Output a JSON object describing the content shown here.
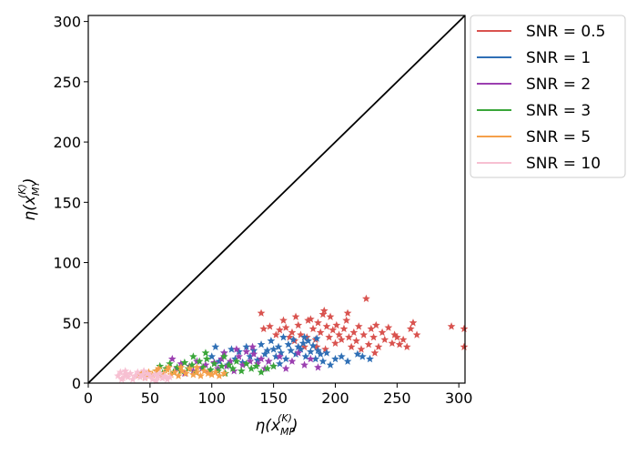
{
  "chart_data": {
    "type": "scatter",
    "title": "",
    "xlabel": {
      "base": "η(x",
      "sup": "(K)",
      "sub": "MP",
      "close": ")"
    },
    "ylabel": {
      "base": "η(x",
      "sup": "(K)",
      "sub": "MY",
      "close": ")"
    },
    "xlim": [
      0,
      305
    ],
    "ylim": [
      0,
      305
    ],
    "xticks": [
      0,
      50,
      100,
      150,
      200,
      250,
      300
    ],
    "yticks": [
      0,
      50,
      100,
      150,
      200,
      250,
      300
    ],
    "marker": "star",
    "legend_position": "outside-top-right",
    "reference_line": {
      "from": [
        0,
        0
      ],
      "to": [
        305,
        305
      ],
      "color": "#000000"
    },
    "series": [
      {
        "name": "SNR = 0.5",
        "color": "#d9534f",
        "points": [
          [
            140,
            58
          ],
          [
            142,
            45
          ],
          [
            147,
            47
          ],
          [
            152,
            40
          ],
          [
            155,
            44
          ],
          [
            158,
            52
          ],
          [
            160,
            46
          ],
          [
            163,
            38
          ],
          [
            165,
            42
          ],
          [
            167,
            35
          ],
          [
            170,
            48
          ],
          [
            172,
            40
          ],
          [
            175,
            30
          ],
          [
            177,
            38
          ],
          [
            180,
            53
          ],
          [
            182,
            45
          ],
          [
            184,
            36
          ],
          [
            186,
            50
          ],
          [
            188,
            42
          ],
          [
            190,
            57
          ],
          [
            191,
            60
          ],
          [
            193,
            47
          ],
          [
            195,
            38
          ],
          [
            196,
            55
          ],
          [
            198,
            44
          ],
          [
            200,
            33
          ],
          [
            201,
            48
          ],
          [
            203,
            40
          ],
          [
            205,
            36
          ],
          [
            207,
            45
          ],
          [
            209,
            52
          ],
          [
            211,
            38
          ],
          [
            213,
            30
          ],
          [
            215,
            42
          ],
          [
            217,
            35
          ],
          [
            219,
            47
          ],
          [
            221,
            28
          ],
          [
            223,
            40
          ],
          [
            225,
            70
          ],
          [
            227,
            32
          ],
          [
            229,
            45
          ],
          [
            231,
            38
          ],
          [
            233,
            48
          ],
          [
            235,
            30
          ],
          [
            238,
            42
          ],
          [
            240,
            36
          ],
          [
            243,
            46
          ],
          [
            246,
            33
          ],
          [
            248,
            40
          ],
          [
            250,
            38
          ],
          [
            252,
            32
          ],
          [
            255,
            36
          ],
          [
            258,
            30
          ],
          [
            261,
            45
          ],
          [
            263,
            50
          ],
          [
            266,
            40
          ],
          [
            294,
            47
          ],
          [
            305,
            45
          ],
          [
            305,
            30
          ],
          [
            185,
            30
          ],
          [
            178,
            52
          ],
          [
            192,
            28
          ],
          [
            168,
            55
          ],
          [
            210,
            58
          ],
          [
            232,
            25
          ]
        ]
      },
      {
        "name": "SNR = 1",
        "color": "#2f6fb5",
        "points": [
          [
            100,
            22
          ],
          [
            103,
            30
          ],
          [
            106,
            18
          ],
          [
            110,
            25
          ],
          [
            113,
            15
          ],
          [
            116,
            28
          ],
          [
            119,
            20
          ],
          [
            122,
            26
          ],
          [
            125,
            17
          ],
          [
            128,
            30
          ],
          [
            131,
            22
          ],
          [
            134,
            27
          ],
          [
            137,
            19
          ],
          [
            140,
            32
          ],
          [
            143,
            24
          ],
          [
            146,
            18
          ],
          [
            148,
            35
          ],
          [
            150,
            28
          ],
          [
            152,
            22
          ],
          [
            154,
            30
          ],
          [
            156,
            25
          ],
          [
            158,
            38
          ],
          [
            160,
            20
          ],
          [
            162,
            32
          ],
          [
            164,
            27
          ],
          [
            166,
            36
          ],
          [
            168,
            24
          ],
          [
            170,
            30
          ],
          [
            172,
            28
          ],
          [
            174,
            33
          ],
          [
            176,
            22
          ],
          [
            178,
            35
          ],
          [
            180,
            26
          ],
          [
            182,
            31
          ],
          [
            184,
            20
          ],
          [
            186,
            27
          ],
          [
            188,
            24
          ],
          [
            190,
            18
          ],
          [
            193,
            25
          ],
          [
            196,
            15
          ],
          [
            200,
            20
          ],
          [
            205,
            22
          ],
          [
            210,
            18
          ],
          [
            218,
            24
          ],
          [
            222,
            22
          ],
          [
            228,
            20
          ],
          [
            145,
            27
          ],
          [
            155,
            16
          ],
          [
            175,
            38
          ],
          [
            185,
            37
          ]
        ]
      },
      {
        "name": "SNR = 2",
        "color": "#9b3fb0",
        "points": [
          [
            68,
            20
          ],
          [
            72,
            12
          ],
          [
            75,
            16
          ],
          [
            78,
            8
          ],
          [
            82,
            14
          ],
          [
            85,
            10
          ],
          [
            88,
            18
          ],
          [
            92,
            12
          ],
          [
            95,
            15
          ],
          [
            98,
            9
          ],
          [
            102,
            17
          ],
          [
            105,
            12
          ],
          [
            108,
            20
          ],
          [
            112,
            14
          ],
          [
            115,
            18
          ],
          [
            118,
            10
          ],
          [
            122,
            22
          ],
          [
            125,
            15
          ],
          [
            128,
            26
          ],
          [
            131,
            18
          ],
          [
            134,
            24
          ],
          [
            137,
            16
          ],
          [
            140,
            20
          ],
          [
            143,
            12
          ],
          [
            146,
            18
          ],
          [
            150,
            14
          ],
          [
            155,
            22
          ],
          [
            160,
            12
          ],
          [
            165,
            18
          ],
          [
            170,
            25
          ],
          [
            175,
            15
          ],
          [
            180,
            20
          ],
          [
            186,
            13
          ],
          [
            120,
            28
          ],
          [
            110,
            25
          ],
          [
            133,
            30
          ]
        ]
      },
      {
        "name": "SNR = 3",
        "color": "#3aa63a",
        "points": [
          [
            55,
            10
          ],
          [
            58,
            14
          ],
          [
            60,
            8
          ],
          [
            63,
            12
          ],
          [
            66,
            16
          ],
          [
            69,
            9
          ],
          [
            72,
            13
          ],
          [
            75,
            10
          ],
          [
            78,
            17
          ],
          [
            81,
            12
          ],
          [
            84,
            15
          ],
          [
            87,
            9
          ],
          [
            90,
            18
          ],
          [
            93,
            13
          ],
          [
            96,
            20
          ],
          [
            99,
            11
          ],
          [
            102,
            16
          ],
          [
            105,
            10
          ],
          [
            108,
            14
          ],
          [
            111,
            8
          ],
          [
            114,
            15
          ],
          [
            117,
            12
          ],
          [
            120,
            18
          ],
          [
            124,
            10
          ],
          [
            128,
            16
          ],
          [
            132,
            12
          ],
          [
            136,
            14
          ],
          [
            140,
            9
          ],
          [
            145,
            12
          ],
          [
            150,
            14
          ],
          [
            85,
            22
          ],
          [
            95,
            25
          ],
          [
            110,
            22
          ]
        ]
      },
      {
        "name": "SNR = 5",
        "color": "#f5a04a",
        "points": [
          [
            40,
            6
          ],
          [
            43,
            8
          ],
          [
            46,
            5
          ],
          [
            49,
            9
          ],
          [
            52,
            7
          ],
          [
            55,
            10
          ],
          [
            58,
            6
          ],
          [
            61,
            8
          ],
          [
            64,
            11
          ],
          [
            67,
            7
          ],
          [
            70,
            9
          ],
          [
            73,
            6
          ],
          [
            76,
            10
          ],
          [
            79,
            8
          ],
          [
            82,
            12
          ],
          [
            85,
            7
          ],
          [
            88,
            9
          ],
          [
            91,
            6
          ],
          [
            94,
            10
          ],
          [
            97,
            8
          ],
          [
            100,
            7
          ],
          [
            103,
            9
          ],
          [
            106,
            6
          ],
          [
            110,
            8
          ],
          [
            57,
            12
          ],
          [
            65,
            13
          ],
          [
            75,
            13
          ],
          [
            88,
            13
          ]
        ]
      },
      {
        "name": "SNR = 10",
        "color": "#f7c0d2",
        "points": [
          [
            24,
            6
          ],
          [
            26,
            9
          ],
          [
            28,
            4
          ],
          [
            30,
            7
          ],
          [
            32,
            5
          ],
          [
            34,
            8
          ],
          [
            36,
            3
          ],
          [
            38,
            6
          ],
          [
            40,
            9
          ],
          [
            42,
            5
          ],
          [
            44,
            7
          ],
          [
            46,
            4
          ],
          [
            48,
            8
          ],
          [
            50,
            6
          ],
          [
            52,
            3
          ],
          [
            54,
            7
          ],
          [
            56,
            5
          ],
          [
            58,
            8
          ],
          [
            60,
            4
          ],
          [
            62,
            6
          ],
          [
            64,
            3
          ],
          [
            66,
            5
          ],
          [
            30,
            10
          ],
          [
            45,
            10
          ],
          [
            55,
            2
          ],
          [
            27,
            3
          ]
        ]
      }
    ]
  }
}
